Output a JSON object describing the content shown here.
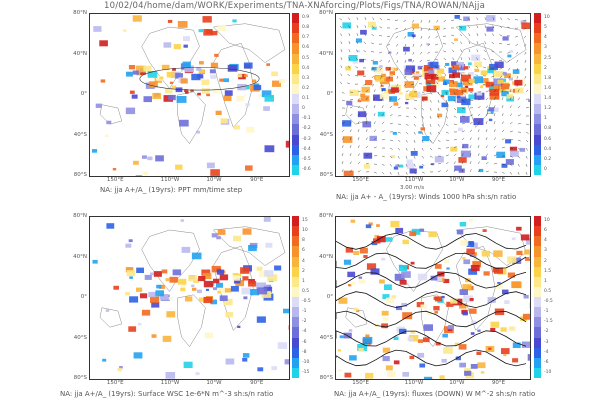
{
  "page": {
    "title": "10/02/04/home/dam/WORK/Experiments/TNA-XNAforcing/Plots/Figs/TNA/ROWAN/NAjja"
  },
  "lat_labels": [
    "80°N",
    "40°N",
    "0°",
    "40°S",
    "80°S"
  ],
  "lon_labels": [
    "150°E",
    "110°W",
    "10°W",
    "90°E"
  ],
  "panels": [
    {
      "id": "ppt",
      "title": "NA: jja A+/A_ (19yrs): PPT mm/time step",
      "colorbar": [
        "0.9",
        "0.8",
        "0.7",
        "0.6",
        "0.5",
        "0.4",
        "0.3",
        "0.2",
        "0.1",
        "0",
        "-0.1",
        "-0.2",
        "-0.3",
        "-0.4",
        "-0.5",
        "-0.6"
      ]
    },
    {
      "id": "winds",
      "title": "NA: jja A+ - A_ (19yrs): Winds 1000 hPa sh:s/n ratio",
      "vector_ref": "3.00 m/s",
      "colorbar": [
        "10",
        "5",
        "4",
        "3",
        "2.5",
        "2",
        "1.8",
        "1.6",
        "1.4",
        "1.2",
        "1",
        "0.8",
        "0.6",
        "0.4",
        "0.2",
        "0"
      ]
    },
    {
      "id": "wsc",
      "title": "NA: jja A+/A_ (19yrs): Surface WSC 1e-6*N m^-3 sh:s/n ratio",
      "colorbar": [
        "15",
        "10",
        "8",
        "6",
        "4",
        "2",
        "1",
        "0.5",
        "-0.5",
        "-1",
        "-2",
        "-4",
        "-6",
        "-8",
        "-10",
        "-15"
      ]
    },
    {
      "id": "flux",
      "title": "NA: jja A+/A_ (19yrs): fluxes (DOWN) W M^-2 sh:s/n ratio",
      "colorbar": [
        "10",
        "6",
        "4",
        "3",
        "2",
        "1.5",
        "1",
        "0.5",
        "-0.5",
        "-1",
        "-1.5",
        "-2",
        "-3",
        "-4",
        "-6",
        "-10"
      ]
    }
  ]
}
